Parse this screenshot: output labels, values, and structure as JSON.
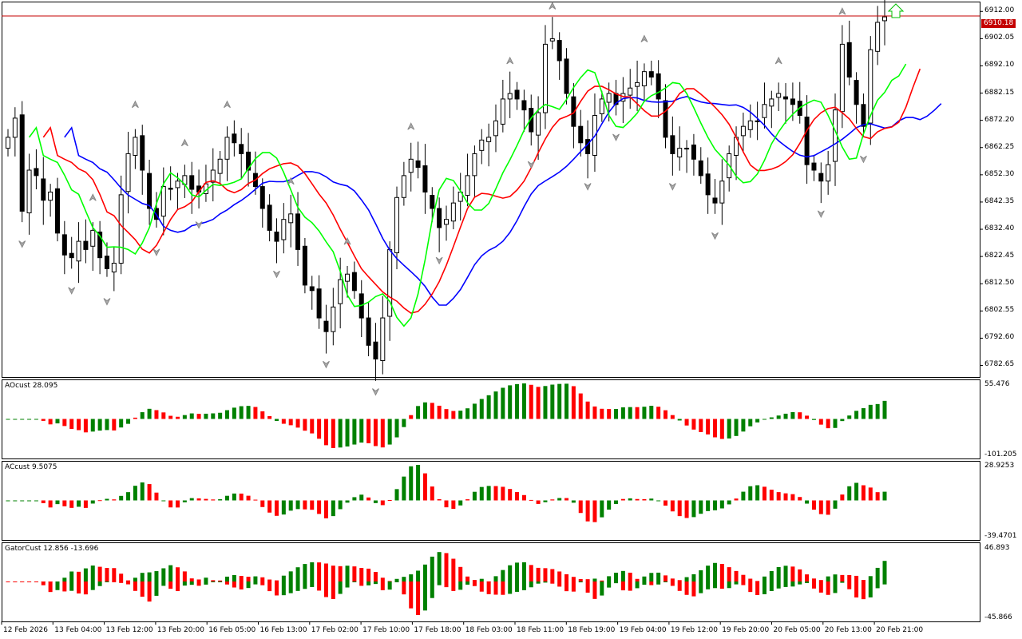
{
  "panes": {
    "main": {
      "price_levels": [
        "6912.00",
        "6902.05",
        "6892.10",
        "6882.15",
        "6872.20",
        "6862.25",
        "6852.30",
        "6842.35",
        "6832.40",
        "6822.45",
        "6812.50",
        "6802.55",
        "6792.60",
        "6782.65"
      ],
      "current_price": "6910.18"
    },
    "ao": {
      "label": "AOcust 28.095",
      "max_label": "55.476",
      "min_label": "-101.205"
    },
    "ac": {
      "label": "ACcust 9.5075",
      "max_label": "28.9253",
      "min_label": "-39.4701"
    },
    "gator": {
      "label": "GatorCust 12.856 -13.696",
      "max_label": "46.893",
      "min_label": "-45.866"
    }
  },
  "time_axis": [
    "12 Feb 2026",
    "13 Feb 04:00",
    "13 Feb 12:00",
    "13 Feb 20:00",
    "16 Feb 05:00",
    "16 Feb 13:00",
    "17 Feb 02:00",
    "17 Feb 10:00",
    "17 Feb 18:00",
    "18 Feb 03:00",
    "18 Feb 11:00",
    "18 Feb 19:00",
    "19 Feb 04:00",
    "19 Feb 12:00",
    "19 Feb 20:00",
    "20 Feb 05:00",
    "20 Feb 13:00",
    "20 Feb 21:00"
  ],
  "colors": {
    "up": "#008000",
    "down": "#ff0000",
    "jaw": "#0000ff",
    "teeth": "#ff0000",
    "lips": "#00ff00",
    "price_line": "#c40000",
    "grid": "#000000"
  },
  "chart_data": {
    "type": "candlestick",
    "symbol_shown": false,
    "price_close": [
      6866,
      6873,
      6839,
      6854,
      6852,
      6843,
      6846,
      6831,
      6823,
      6822,
      6828,
      6825,
      6832,
      6822,
      6818,
      6820,
      6845,
      6860,
      6866,
      6854,
      6840,
      6836,
      6848,
      6847,
      6850,
      6852,
      6847,
      6846,
      6849,
      6854,
      6858,
      6866,
      6864,
      6860,
      6854,
      6848,
      6840,
      6832,
      6828,
      6836,
      6838,
      6825,
      6812,
      6810,
      6800,
      6795,
      6804,
      6814,
      6816,
      6810,
      6800,
      6790,
      6785,
      6800,
      6825,
      6844,
      6852,
      6858,
      6855,
      6846,
      6840,
      6833,
      6836,
      6842,
      6846,
      6852,
      6860,
      6865,
      6866,
      6872,
      6880,
      6882,
      6880,
      6876,
      6868,
      6875,
      6900,
      6902,
      6894,
      6882,
      6870,
      6864,
      6860,
      6874,
      6880,
      6882,
      6878,
      6882,
      6884,
      6886,
      6890,
      6888,
      6880,
      6866,
      6860,
      6862,
      6862,
      6858,
      6852,
      6845,
      6842,
      6850,
      6860,
      6866,
      6870,
      6872,
      6872,
      6878,
      6880,
      6882,
      6880,
      6878,
      6874,
      6856,
      6854,
      6850,
      6856,
      6876,
      6900,
      6888,
      6878,
      6870,
      6898,
      6908,
      6910
    ],
    "alligator": {
      "jaw": "blue",
      "teeth": "red",
      "lips": "green"
    },
    "ylim": [
      6779,
      6915
    ]
  }
}
